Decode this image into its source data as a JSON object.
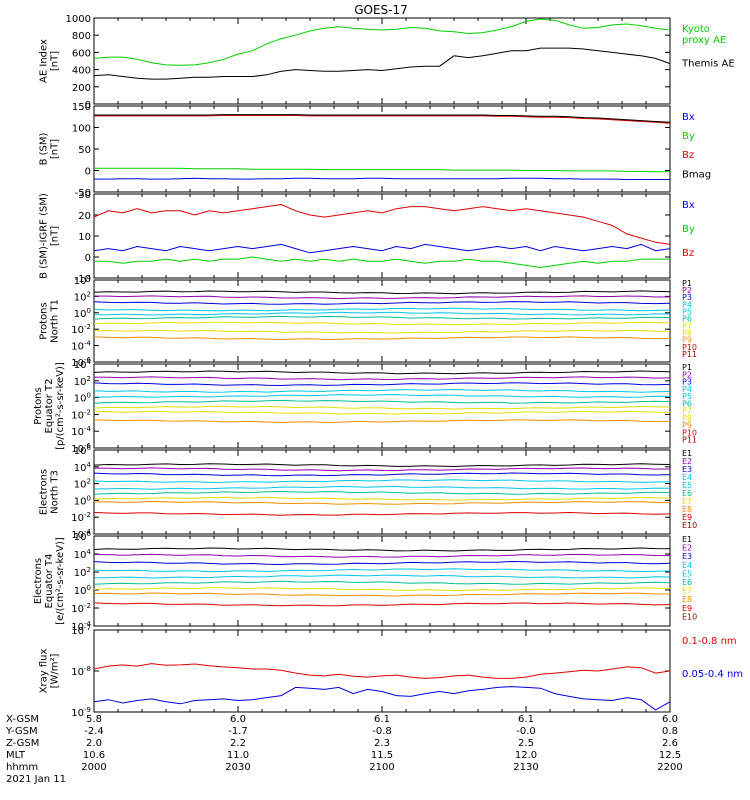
{
  "title": "GOES-17",
  "colors": {
    "black": "#000000",
    "red": "#e00000",
    "green": "#00d000",
    "blue": "#0000e0",
    "purple": "#9000b0",
    "cyan": "#00c8e8",
    "teal": "#00c090",
    "yellow": "#e0e000",
    "orange": "#f09000",
    "darkred": "#a00000"
  },
  "chart_data": [
    {
      "type": "line",
      "ylabel": "AE Index\n[nT]",
      "yticks": [
        "0",
        "200",
        "400",
        "600",
        "800",
        "1000"
      ],
      "ylim": [
        0,
        1000
      ],
      "legend": [
        "Kyoto\nproxy AE",
        "Themis AE"
      ],
      "series": [
        {
          "name": "Kyoto proxy AE",
          "color": "green",
          "values": [
            530,
            545,
            545,
            520,
            480,
            455,
            450,
            455,
            480,
            520,
            580,
            620,
            700,
            760,
            800,
            850,
            880,
            900,
            880,
            870,
            860,
            870,
            890,
            880,
            850,
            840,
            820,
            830,
            860,
            900,
            960,
            990,
            975,
            920,
            880,
            890,
            920,
            930,
            910,
            880,
            860
          ]
        },
        {
          "name": "Themis AE",
          "color": "black",
          "values": [
            330,
            340,
            320,
            300,
            290,
            290,
            300,
            310,
            310,
            320,
            320,
            320,
            340,
            380,
            400,
            390,
            380,
            380,
            390,
            400,
            390,
            410,
            430,
            440,
            440,
            560,
            540,
            560,
            590,
            620,
            620,
            650,
            650,
            650,
            640,
            620,
            600,
            580,
            560,
            530,
            470
          ]
        }
      ]
    },
    {
      "type": "line",
      "ylabel": "B (SM)\n[nT]",
      "yticks": [
        "-50",
        "0",
        "50",
        "100",
        "150"
      ],
      "ylim": [
        -50,
        150
      ],
      "legend": [
        "Bx",
        "By",
        "Bz",
        "Bmag"
      ],
      "series": [
        {
          "name": "Bx",
          "color": "blue",
          "values": [
            -20,
            -20,
            -19,
            -19,
            -20,
            -20,
            -19,
            -18,
            -19,
            -19,
            -20,
            -20,
            -19,
            -19,
            -18,
            -18,
            -19,
            -19,
            -19,
            -18,
            -18,
            -19,
            -19,
            -19,
            -19,
            -19,
            -19,
            -19,
            -19,
            -18,
            -18,
            -18,
            -19,
            -19,
            -20,
            -20,
            -20,
            -21,
            -21,
            -21,
            -21
          ]
        },
        {
          "name": "By",
          "color": "green",
          "values": [
            5,
            5,
            5,
            5,
            5,
            5,
            5,
            4,
            4,
            4,
            4,
            3,
            3,
            3,
            3,
            3,
            2,
            2,
            2,
            2,
            2,
            2,
            2,
            2,
            2,
            1,
            1,
            1,
            1,
            1,
            0,
            0,
            0,
            -1,
            -1,
            -1,
            -1,
            -2,
            -2,
            -3,
            -3
          ]
        },
        {
          "name": "Bz",
          "color": "red",
          "values": [
            127,
            127,
            127,
            127,
            127,
            127,
            127,
            127,
            127,
            128,
            128,
            128,
            128,
            128,
            128,
            127,
            127,
            127,
            127,
            127,
            127,
            127,
            127,
            127,
            127,
            127,
            127,
            127,
            126,
            126,
            125,
            124,
            124,
            123,
            121,
            120,
            118,
            116,
            114,
            112,
            110
          ]
        },
        {
          "name": "Bmag",
          "color": "black",
          "values": [
            129,
            129,
            129,
            129,
            129,
            129,
            129,
            129,
            129,
            130,
            130,
            130,
            130,
            130,
            130,
            129,
            129,
            129,
            129,
            129,
            129,
            129,
            129,
            129,
            129,
            129,
            129,
            129,
            128,
            128,
            127,
            126,
            126,
            125,
            123,
            122,
            120,
            118,
            116,
            114,
            112
          ]
        }
      ]
    },
    {
      "type": "line",
      "ylabel": "B (SM)-IGRF (SM)\n[nT]",
      "yticks": [
        "-10",
        "0",
        "10",
        "20",
        "30"
      ],
      "ylim": [
        -10,
        30
      ],
      "legend": [
        "Bx",
        "By",
        "Bz"
      ],
      "series": [
        {
          "name": "Bx",
          "color": "blue",
          "values": [
            3,
            4,
            3,
            5,
            4,
            3,
            5,
            4,
            3,
            4,
            5,
            4,
            5,
            6,
            4,
            2,
            3,
            4,
            5,
            4,
            3,
            5,
            4,
            6,
            5,
            4,
            3,
            4,
            5,
            4,
            5,
            3,
            5,
            4,
            3,
            4,
            5,
            4,
            6,
            3,
            4
          ]
        },
        {
          "name": "By",
          "color": "green",
          "values": [
            -2,
            -2,
            -3,
            -2,
            -2,
            -1,
            -2,
            -1,
            -2,
            -1,
            -1,
            0,
            -1,
            -2,
            -1,
            -2,
            -1,
            -2,
            -1,
            -2,
            -2,
            -1,
            -2,
            -3,
            -2,
            -2,
            -1,
            -2,
            -2,
            -3,
            -4,
            -5,
            -4,
            -3,
            -2,
            -3,
            -2,
            -2,
            -1,
            -1,
            -1
          ]
        },
        {
          "name": "Bz",
          "color": "red",
          "values": [
            19,
            22,
            21,
            23,
            21,
            22,
            22,
            20,
            22,
            21,
            22,
            23,
            24,
            25,
            22,
            20,
            19,
            20,
            21,
            22,
            21,
            23,
            24,
            24,
            23,
            22,
            23,
            24,
            23,
            22,
            23,
            22,
            21,
            20,
            19,
            17,
            15,
            11,
            9,
            7,
            6
          ]
        }
      ]
    },
    {
      "type": "line",
      "log": true,
      "ylabel": "Protons\nNorth T1",
      "yticks": [
        "10^4",
        "10^2",
        "10^0",
        "10^-2",
        "10^-4",
        "10^-6"
      ],
      "ylim": [
        -6,
        4
      ],
      "legend": [
        "P1",
        "P2",
        "P3",
        "P4",
        "P5",
        "P6",
        "P7",
        "P8",
        "P9",
        "P10",
        "P11"
      ],
      "levels": [
        2.5,
        1.9,
        1.2,
        0.4,
        -0.1,
        -0.6,
        -1.3,
        -2.3,
        -3.1,
        null,
        null
      ],
      "series_colors": [
        "black",
        "purple",
        "blue",
        "cyan",
        "cyan",
        "teal",
        "yellow",
        "yellow",
        "orange",
        "red",
        "darkred"
      ]
    },
    {
      "type": "line",
      "log": true,
      "ylabel": "Protons\nEquator T2\n[p/(cm²-s-sr-keV)]",
      "yticks": [
        "10^4",
        "10^2",
        "10^0",
        "10^-2",
        "10^-4",
        "10^-6"
      ],
      "ylim": [
        -6,
        4
      ],
      "legend": [
        "P1",
        "P2",
        "P3",
        "P4",
        "P5",
        "P6",
        "P7",
        "P8",
        "P9",
        "P10",
        "P11"
      ],
      "levels": [
        3.0,
        2.3,
        1.6,
        0.8,
        0.2,
        -0.5,
        -1.2,
        -1.8,
        -2.8,
        null,
        null
      ],
      "series_colors": [
        "black",
        "purple",
        "blue",
        "cyan",
        "cyan",
        "teal",
        "yellow",
        "yellow",
        "orange",
        "red",
        "darkred"
      ]
    },
    {
      "type": "line",
      "log": true,
      "ylabel": "Electrons\nNorth T3",
      "yticks": [
        "10^6",
        "10^4",
        "10^2",
        "10^0",
        "10^-2",
        "10^-4"
      ],
      "ylim": [
        -4,
        6
      ],
      "legend": [
        "E1",
        "E2",
        "E3",
        "E4",
        "E5",
        "E6",
        "E7",
        "E8",
        "E9",
        "E10"
      ],
      "levels": [
        4.2,
        3.7,
        3.1,
        2.3,
        1.5,
        0.9,
        0.2,
        -0.3,
        -1.6,
        null
      ],
      "series_colors": [
        "black",
        "purple",
        "blue",
        "cyan",
        "cyan",
        "teal",
        "yellow",
        "orange",
        "red",
        "darkred"
      ]
    },
    {
      "type": "line",
      "log": true,
      "ylabel": "Electrons\nEquator T4\n[e/(cm²-s-sr-keV)]",
      "yticks": [
        "10^6",
        "10^4",
        "10^2",
        "10^0",
        "10^-2",
        "10^-4"
      ],
      "ylim": [
        -4,
        6
      ],
      "legend": [
        "E1",
        "E2",
        "E3",
        "E4",
        "E5",
        "E6",
        "E7",
        "E8",
        "E9",
        "E10"
      ],
      "levels": [
        4.5,
        3.8,
        3.0,
        2.2,
        1.5,
        0.8,
        0.1,
        -0.5,
        -1.6,
        null
      ],
      "series_colors": [
        "black",
        "purple",
        "blue",
        "cyan",
        "cyan",
        "teal",
        "yellow",
        "orange",
        "red",
        "darkred"
      ]
    },
    {
      "type": "line",
      "log": true,
      "ylabel": "Xray flux\n[W/m²]",
      "yticks": [
        "10^-7",
        "10^-8",
        "10^-9"
      ],
      "ylim": [
        -9,
        -7
      ],
      "legend": [
        "0.1-0.8 nm",
        "0.05-0.4 nm"
      ],
      "series": [
        {
          "name": "0.1-0.8 nm",
          "color": "red",
          "values": [
            -7.95,
            -7.88,
            -7.85,
            -7.88,
            -7.82,
            -7.86,
            -7.85,
            -7.83,
            -7.87,
            -7.9,
            -7.92,
            -7.95,
            -7.95,
            -7.98,
            -8.05,
            -8.1,
            -8.12,
            -8.08,
            -8.13,
            -8.15,
            -8.12,
            -8.1,
            -8.15,
            -8.18,
            -8.16,
            -8.12,
            -8.1,
            -8.15,
            -8.18,
            -8.18,
            -8.15,
            -8.08,
            -8.05,
            -8.02,
            -7.98,
            -8.0,
            -7.95,
            -7.9,
            -7.92,
            -8.05,
            -8.0
          ]
        },
        {
          "name": "0.05-0.4 nm",
          "color": "blue",
          "values": [
            -8.75,
            -8.7,
            -8.78,
            -8.72,
            -8.68,
            -8.75,
            -8.8,
            -8.72,
            -8.7,
            -8.68,
            -8.72,
            -8.7,
            -8.65,
            -8.6,
            -8.4,
            -8.42,
            -8.45,
            -8.4,
            -8.55,
            -8.45,
            -8.5,
            -8.6,
            -8.62,
            -8.55,
            -8.5,
            -8.55,
            -8.48,
            -8.45,
            -8.4,
            -8.38,
            -8.4,
            -8.42,
            -8.55,
            -8.62,
            -8.68,
            -8.7,
            -8.72,
            -8.65,
            -8.7,
            -8.95,
            -8.75
          ]
        }
      ]
    }
  ],
  "xaxis": {
    "rows": [
      {
        "label": "X-GSM",
        "values": [
          "5.8",
          "6.0",
          "6.1",
          "6.1",
          "6.0"
        ]
      },
      {
        "label": "Y-GSM",
        "values": [
          "-2.4",
          "-1.7",
          "-0.8",
          "-0.0",
          "0.8"
        ]
      },
      {
        "label": "Z-GSM",
        "values": [
          "2.0",
          "2.2",
          "2.3",
          "2.5",
          "2.6"
        ]
      },
      {
        "label": "MLT",
        "values": [
          "10.6",
          "11.0",
          "11.5",
          "12.0",
          "12.5"
        ]
      },
      {
        "label": "hhmm",
        "values": [
          "2000",
          "2030",
          "2100",
          "2130",
          "2200"
        ]
      }
    ],
    "date": "2021 Jan 11"
  }
}
